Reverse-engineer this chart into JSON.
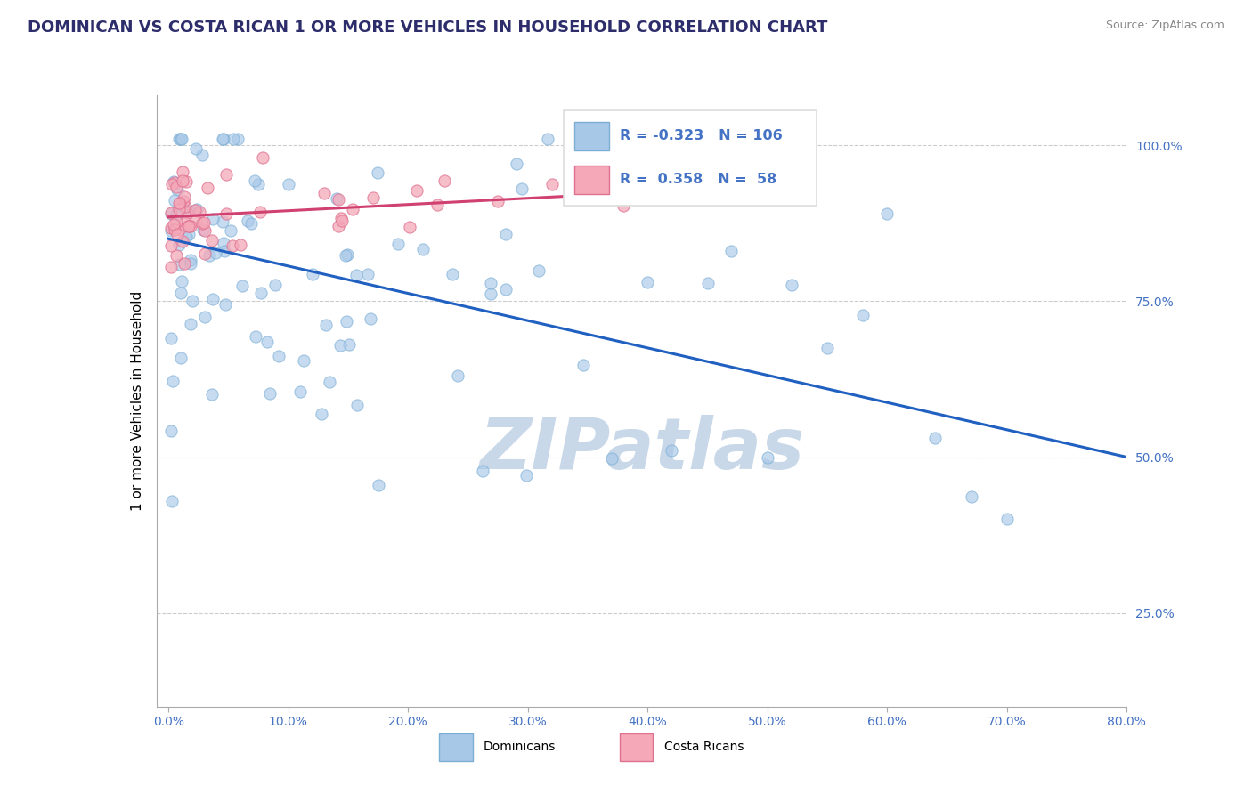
{
  "title": "DOMINICAN VS COSTA RICAN 1 OR MORE VEHICLES IN HOUSEHOLD CORRELATION CHART",
  "source": "Source: ZipAtlas.com",
  "ylabel": "1 or more Vehicles in Household",
  "x_tick_labels": [
    "0.0%",
    "10.0%",
    "20.0%",
    "30.0%",
    "40.0%",
    "50.0%",
    "60.0%",
    "70.0%",
    "80.0%"
  ],
  "x_ticks": [
    0.0,
    10.0,
    20.0,
    30.0,
    40.0,
    50.0,
    60.0,
    70.0,
    80.0
  ],
  "y_tick_labels_right": [
    "25.0%",
    "50.0%",
    "75.0%",
    "100.0%"
  ],
  "y_ticks_right": [
    25.0,
    50.0,
    75.0,
    100.0
  ],
  "xlim": [
    -1.0,
    80.0
  ],
  "ylim": [
    10.0,
    108.0
  ],
  "legend_blue_R": "-0.323",
  "legend_blue_N": "106",
  "legend_pink_R": "0.358",
  "legend_pink_N": "58",
  "blue_color": "#a8c8e8",
  "pink_color": "#f4a8b8",
  "blue_edge_color": "#7aaed4",
  "pink_edge_color": "#e07090",
  "blue_line_color": "#2060c0",
  "pink_line_color": "#d04070",
  "watermark": "ZIPatlas",
  "watermark_color": "#c8d8e8",
  "title_color": "#2d2d6b",
  "axis_color": "#4472c4",
  "grid_color": "#cccccc",
  "legend_box_color": "#dddddd",
  "bottom_legend_labels": [
    "Dominicans",
    "Costa Ricans"
  ]
}
